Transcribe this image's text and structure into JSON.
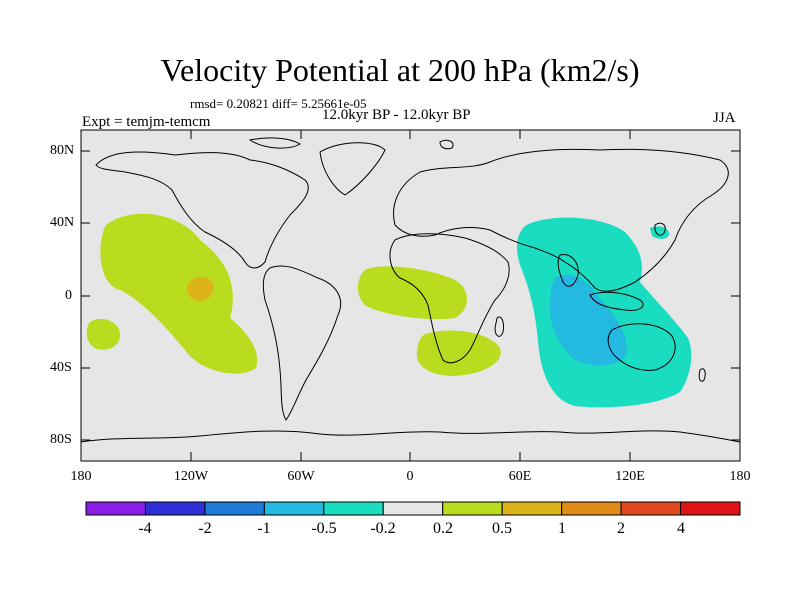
{
  "title": "Velocity Potential at 200 hPa (km2/s)",
  "stats": "rmsd= 0.20821 diff= 5.25661e-05",
  "period": "12.0kyr BP - 12.0kyr BP",
  "experiment": "Expt = temjm-temcm",
  "season": "JJA",
  "y_axis_labels": [
    "80N",
    "40N",
    "0",
    "40S",
    "80S"
  ],
  "x_axis_labels": [
    "180",
    "120W",
    "60W",
    "0",
    "60E",
    "120E",
    "180"
  ],
  "colorbar": {
    "labels": [
      "-4",
      "-2",
      "-1",
      "-0.5",
      "-0.2",
      "0.2",
      "0.5",
      "1",
      "2",
      "4"
    ],
    "colors": [
      "#8a1ee6",
      "#2f2fd8",
      "#1c7ad8",
      "#23b9e0",
      "#19dcc0",
      "#e6e6e6",
      "#b9dc1e",
      "#dcb41a",
      "#e08a18",
      "#e0481e",
      "#e01414"
    ]
  },
  "colors": {
    "background": "#e6e6e6",
    "positive_weak": "#b9dc1e",
    "positive_mid": "#dcb41a",
    "negative_weak": "#19dcc0",
    "negative_mid": "#23b9e0"
  },
  "chart_data": {
    "type": "filled-contour-map",
    "variable": "Velocity Potential at 200 hPa",
    "units": "km2/s",
    "xlim": [
      -180,
      180
    ],
    "ylim": [
      -90,
      90
    ],
    "levels": [
      -4,
      -2,
      -1,
      -0.5,
      -0.2,
      0.2,
      0.5,
      1,
      2,
      4
    ],
    "features": [
      {
        "name": "east-pacific-positive",
        "range": "0.2 to 0.5",
        "center_lon": -120,
        "center_lat": 10
      },
      {
        "name": "east-pacific-core",
        "range": "0.5 to 1",
        "center_lon": -117,
        "center_lat": 0
      },
      {
        "name": "atlantic-positive",
        "range": "0.2 to 0.5",
        "center_lon": -5,
        "center_lat": 0
      },
      {
        "name": "south-africa-positive",
        "range": "0.2 to 0.5",
        "center_lon": 25,
        "center_lat": -40
      },
      {
        "name": "indian-ocean-negative",
        "range": "-0.5 to -0.2",
        "center_lon": 90,
        "center_lat": -10
      },
      {
        "name": "indian-ocean-core",
        "range": "-1 to -0.5",
        "center_lon": 95,
        "center_lat": -25
      }
    ]
  }
}
